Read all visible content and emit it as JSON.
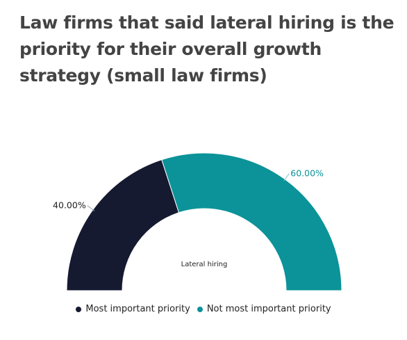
{
  "chart_data": {
    "type": "pie",
    "variant": "semicircle-donut",
    "title": "Law firms that said lateral hiring is the priority for their overall growth strategy (small law firms)",
    "center_label": "Lateral hiring",
    "slices": [
      {
        "name": "Most important priority",
        "value": 40.0,
        "label": "40.00%",
        "color": "#161a30"
      },
      {
        "name": "Not most important priority",
        "value": 60.0,
        "label": "60.00%",
        "color": "#0b9399"
      }
    ],
    "legend_position": "bottom-center"
  }
}
